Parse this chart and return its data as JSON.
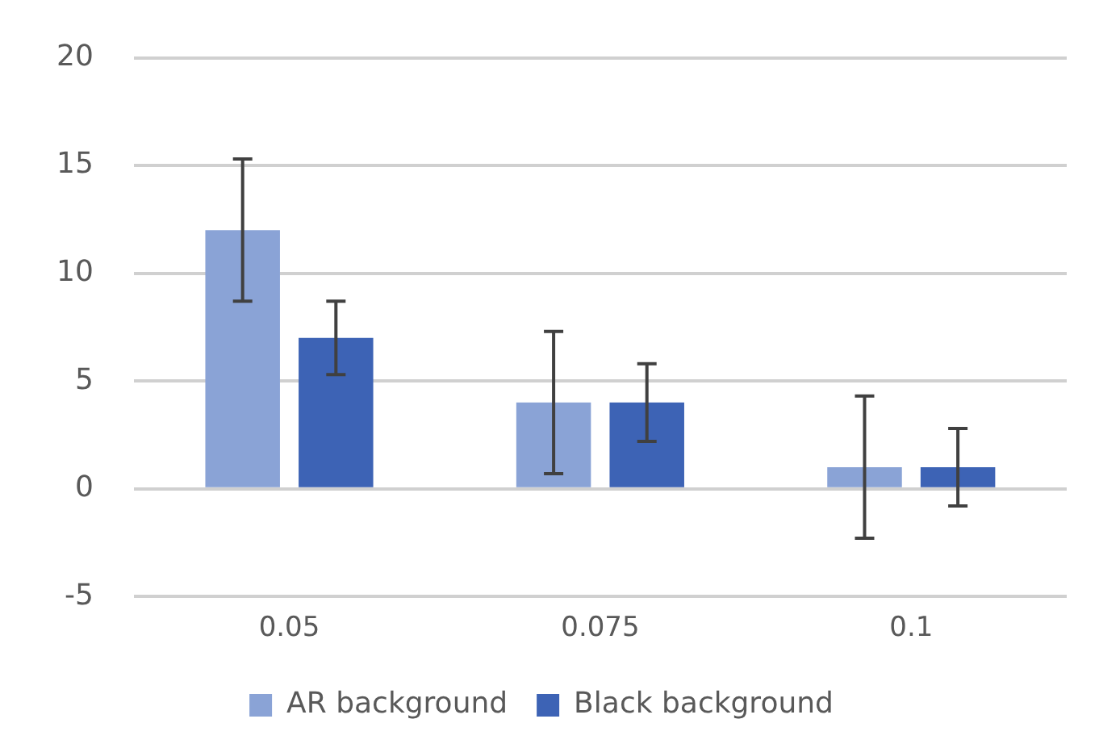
{
  "chart_data": {
    "type": "bar",
    "categories": [
      "0.05",
      "0.075",
      "0.1"
    ],
    "series": [
      {
        "name": "AR background",
        "color": "#8aa3d6",
        "values": [
          12,
          4,
          1
        ],
        "errors": [
          3.3,
          3.3,
          3.3
        ]
      },
      {
        "name": "Black background",
        "color": "#3d63b5",
        "values": [
          7,
          4,
          1
        ],
        "errors": [
          1.7,
          1.8,
          1.8
        ]
      }
    ],
    "ylim": [
      -5,
      20
    ],
    "yticks": [
      -5,
      0,
      5,
      10,
      15,
      20
    ],
    "grid": "y",
    "legend": "bottom"
  }
}
